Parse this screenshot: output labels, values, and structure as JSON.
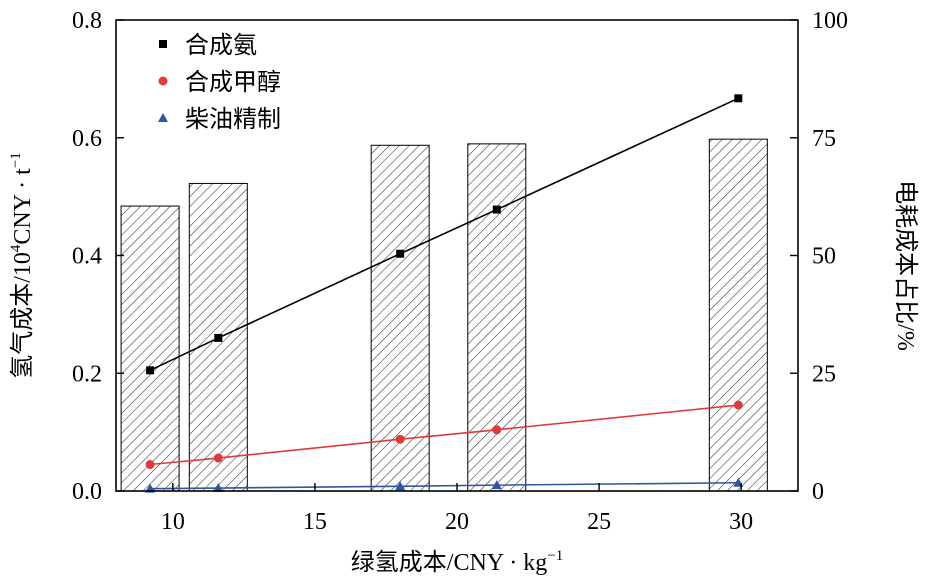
{
  "chart_data": {
    "type": "bar+line",
    "x_axis": {
      "label_main": "绿氢成本/CNY · kg",
      "label_sup": "−1",
      "range": [
        8,
        32
      ],
      "ticks": [
        10,
        15,
        20,
        25,
        30
      ]
    },
    "y_left": {
      "label_main": "氢气成本/10",
      "label_sup1": "4",
      "label_mid": "CNY · t",
      "label_sup2": "−1",
      "range": [
        0,
        0.8
      ],
      "ticks": [
        "0.0",
        "0.2",
        "0.4",
        "0.6",
        "0.8"
      ]
    },
    "y_right": {
      "label": "电耗成本占比/%",
      "range": [
        0,
        100
      ],
      "ticks": [
        "0",
        "25",
        "50",
        "75",
        "100"
      ]
    },
    "bars": {
      "name": "电耗成本占比",
      "axis": "right",
      "x": [
        9.2,
        11.6,
        18.0,
        21.4,
        29.9
      ],
      "values": [
        60.5,
        65.3,
        73.4,
        73.7,
        74.7
      ]
    },
    "series": [
      {
        "name": "合成氨",
        "marker": "square",
        "color": "#000000",
        "x": [
          9.2,
          11.6,
          18.0,
          21.4,
          29.9
        ],
        "values": [
          0.205,
          0.26,
          0.403,
          0.478,
          0.667
        ]
      },
      {
        "name": "合成甲醇",
        "marker": "circle",
        "color": "#e03a3a",
        "x": [
          9.2,
          11.6,
          18.0,
          21.4,
          29.9
        ],
        "values": [
          0.045,
          0.056,
          0.088,
          0.104,
          0.146
        ]
      },
      {
        "name": "柴油精制",
        "marker": "triangle",
        "color": "#2f55a4",
        "x": [
          9.2,
          11.6,
          18.0,
          21.4,
          29.9
        ],
        "values": [
          0.004,
          0.005,
          0.008,
          0.01,
          0.014
        ]
      }
    ],
    "legend_position": "top-left"
  }
}
